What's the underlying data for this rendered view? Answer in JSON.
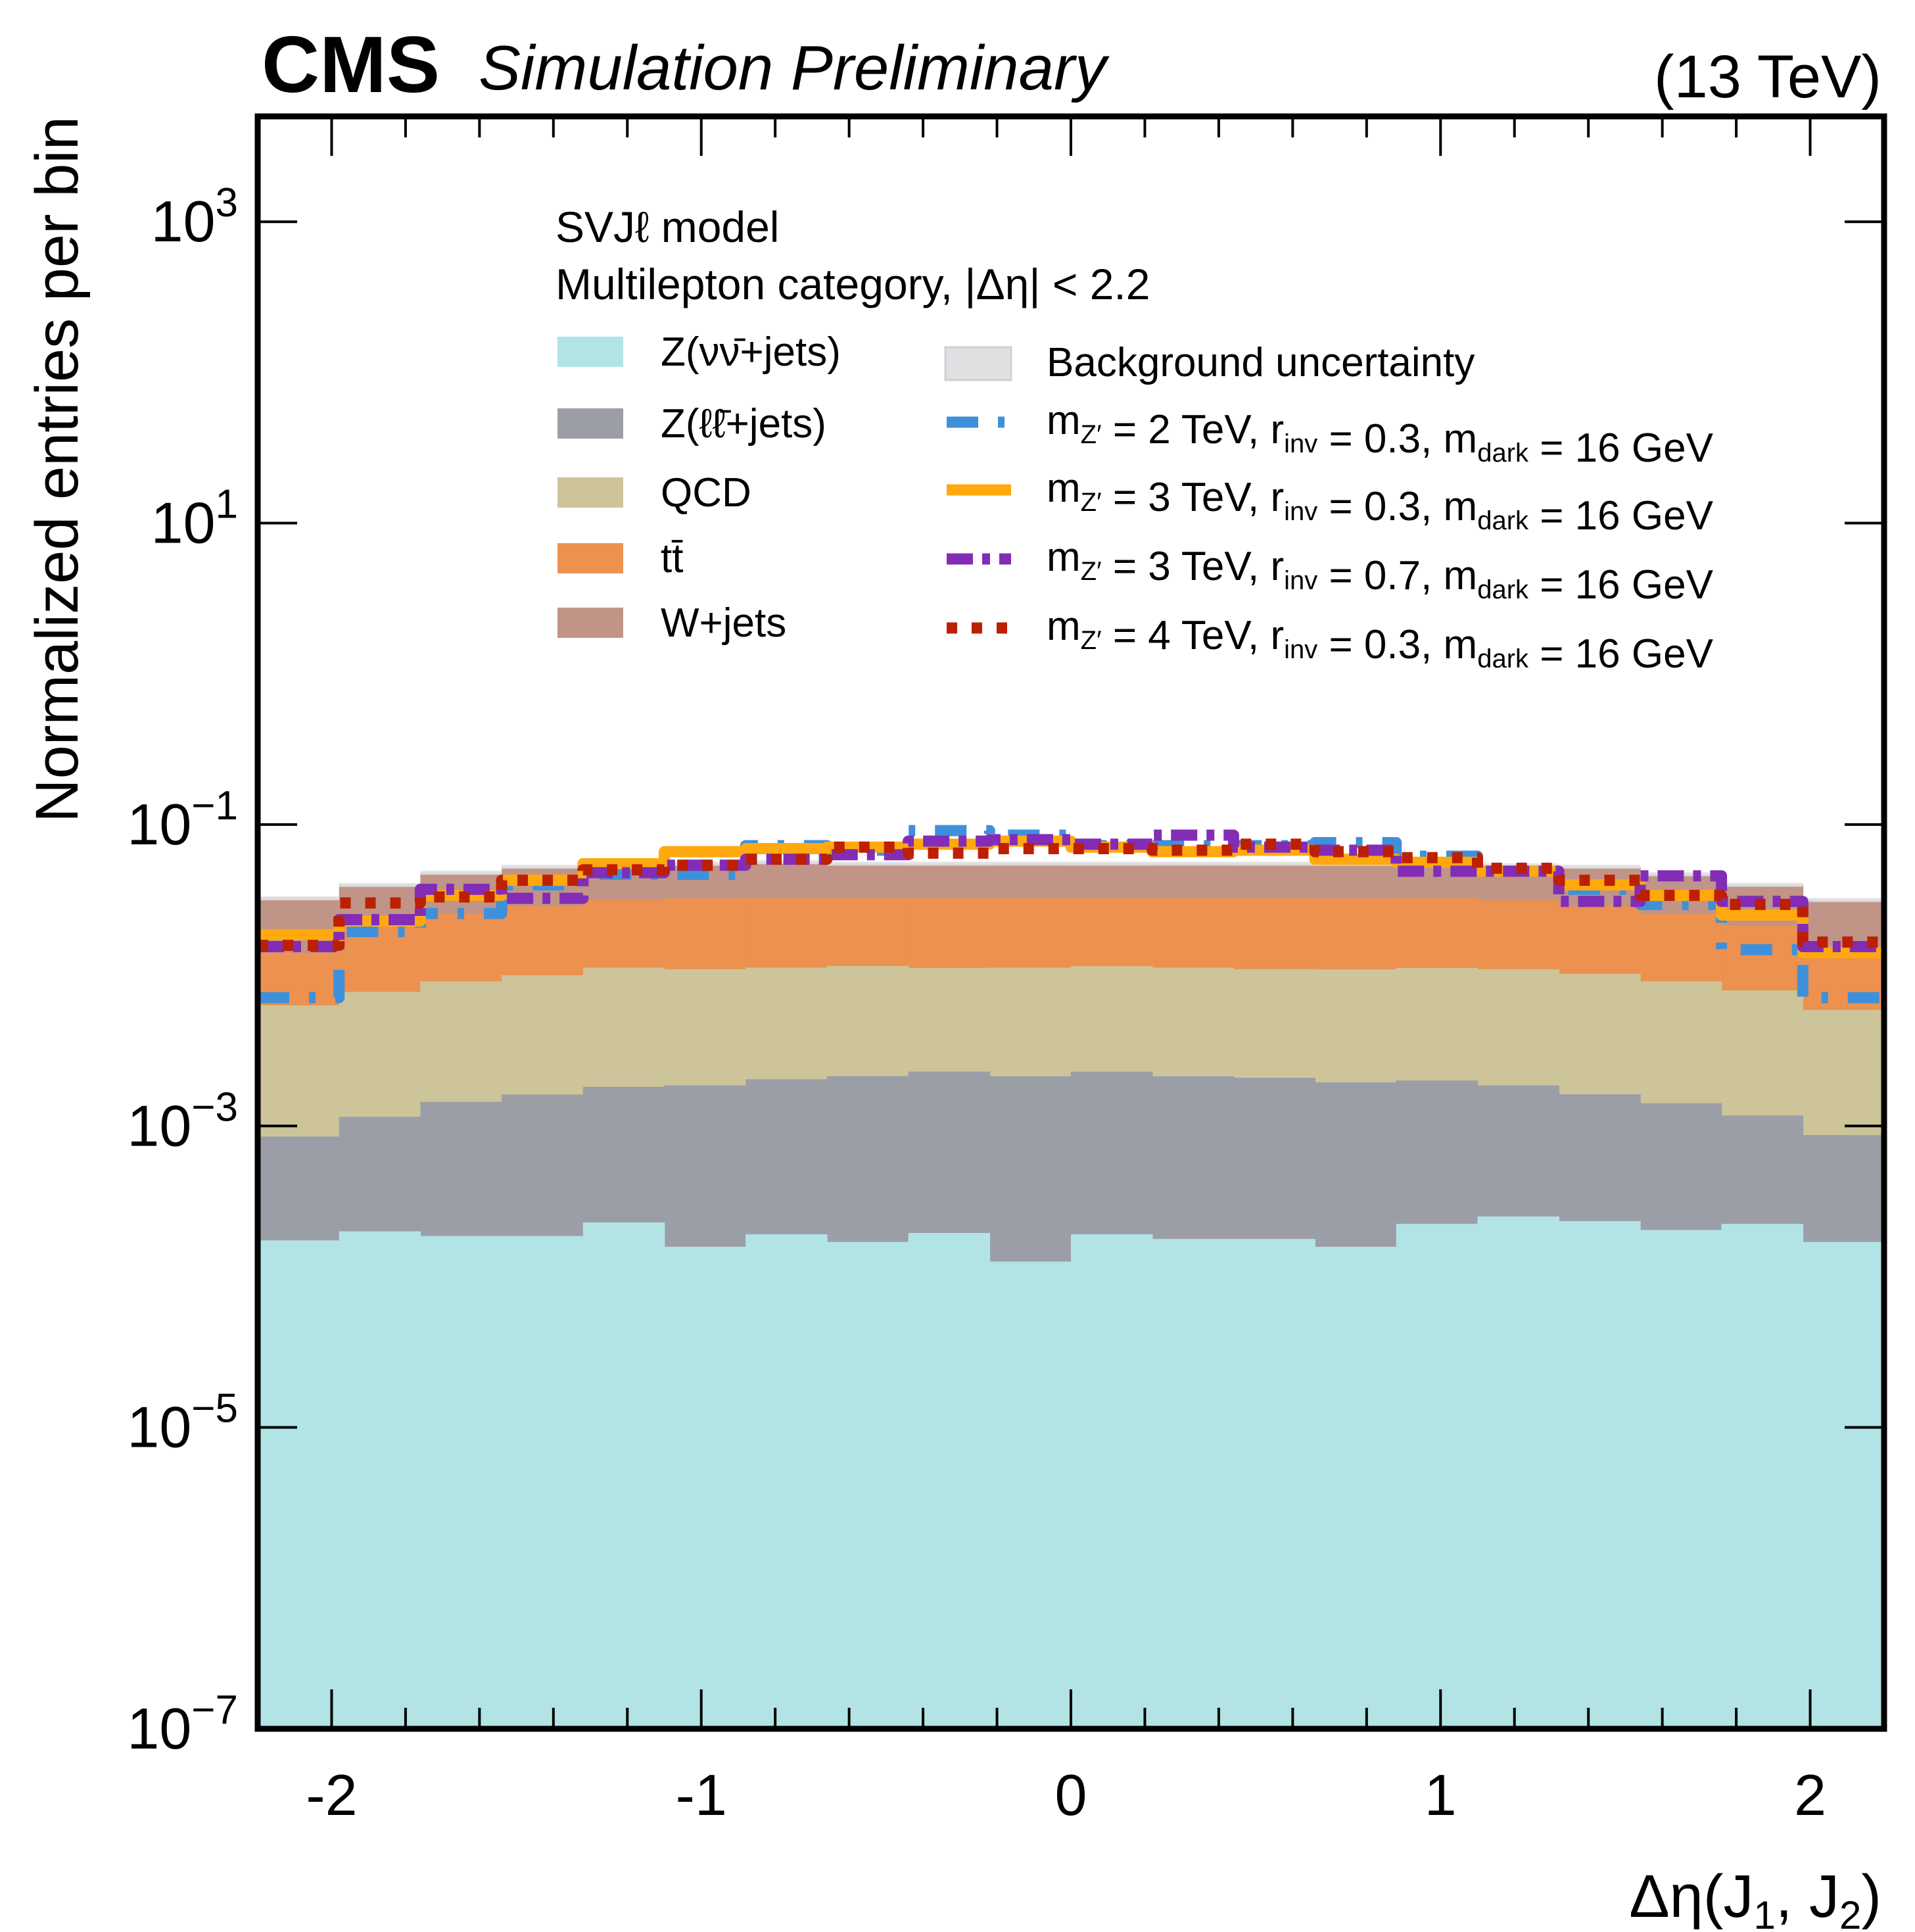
{
  "header": {
    "experiment": "CMS",
    "status": "Simulation Preliminary",
    "energy": "(13 TeV)"
  },
  "chart_data": {
    "type": "bar",
    "subtype": "stacked-histogram-with-step-lines",
    "title": "",
    "xlabel": "Δη(J₁, J₂)",
    "ylabel": "Normalized entries per bin",
    "yscale": "log",
    "xlim": [
      -2.2,
      2.2
    ],
    "ylim": [
      1e-07,
      5000
    ],
    "x_ticks": [
      {
        "value": -2,
        "label": "-2"
      },
      {
        "value": -1,
        "label": "-1"
      },
      {
        "value": 0,
        "label": "0"
      },
      {
        "value": 1,
        "label": "1"
      },
      {
        "value": 2,
        "label": "2"
      }
    ],
    "y_ticks": [
      {
        "exp": 3,
        "label_base": "10",
        "label_exp": "3"
      },
      {
        "exp": 1,
        "label_base": "10",
        "label_exp": "1"
      },
      {
        "exp": -1,
        "label_base": "10",
        "label_exp": "−1"
      },
      {
        "exp": -3,
        "label_base": "10",
        "label_exp": "−3"
      },
      {
        "exp": -5,
        "label_base": "10",
        "label_exp": "−5"
      },
      {
        "exp": -7,
        "label_base": "10",
        "label_exp": "−7"
      }
    ],
    "bin_edges": [
      -2.2,
      -1.98,
      -1.76,
      -1.54,
      -1.32,
      -1.1,
      -0.88,
      -0.66,
      -0.44,
      -0.22,
      0.0,
      0.22,
      0.44,
      0.66,
      0.88,
      1.1,
      1.32,
      1.54,
      1.76,
      1.98,
      2.2
    ],
    "legend_header": [
      "SVJℓ model",
      "Multilepton category,  |Δη| < 2.2"
    ],
    "legend_placement": "top-center",
    "stack": [
      {
        "name": "Z(νν̄+jets)",
        "color": "#b2e4e6",
        "values": [
          0.000174,
          0.0002,
          0.000186,
          0.000186,
          0.000229,
          0.000158,
          0.000191,
          0.00017,
          0.000195,
          0.000126,
          0.000191,
          0.000178,
          0.000178,
          0.000158,
          0.000224,
          0.000251,
          0.000234,
          0.000204,
          0.000224,
          0.00017
        ]
      },
      {
        "name": "Z(ℓℓ̄+jets)",
        "color": "#9c9ea7",
        "values": [
          0.000677,
          0.00095,
          0.00126,
          0.00143,
          0.00159,
          0.0017,
          0.00185,
          0.00197,
          0.0021,
          0.00201,
          0.0021,
          0.00196,
          0.00191,
          0.00179,
          0.00178,
          0.00161,
          0.00139,
          0.00121,
          0.00095,
          0.0007
        ]
      },
      {
        "name": "QCD",
        "color": "#cdc499",
        "values": [
          0.00546,
          0.00661,
          0.00767,
          0.00838,
          0.0094,
          0.0091,
          0.0092,
          0.0094,
          0.0089,
          0.0091,
          0.0092,
          0.0091,
          0.0089,
          0.009,
          0.0092,
          0.0091,
          0.0086,
          0.00771,
          0.00677,
          0.00502
        ]
      },
      {
        "name": "tt̄",
        "color": "#ec914f",
        "values": [
          0.0078,
          0.0141,
          0.0166,
          0.0188,
          0.0204,
          0.0214,
          0.0212,
          0.0209,
          0.0212,
          0.0212,
          0.0209,
          0.0212,
          0.0214,
          0.0214,
          0.0212,
          0.0206,
          0.0186,
          0.0166,
          0.0135,
          0.0073
        ]
      },
      {
        "name": "W+jets",
        "color": "#c19488",
        "values": [
          0.0183,
          0.0179,
          0.0222,
          0.0237,
          0.0259,
          0.0226,
          0.0238,
          0.0226,
          0.0226,
          0.0226,
          0.0226,
          0.0226,
          0.0226,
          0.0226,
          0.0226,
          0.0221,
          0.0237,
          0.0211,
          0.0184,
          0.0184
        ]
      }
    ],
    "uncertainty": {
      "name": "Background uncertainty",
      "color": "#e0e0e3",
      "relative": 0.03
    },
    "series": [
      {
        "name": "mZ′ = 2 TeV, rinv = 0.3, mdark = 16 GeV",
        "mz": "2",
        "rinv": "0.3",
        "mdark": "16",
        "color": "#3f90da",
        "dash": "dashed",
        "values": [
          0.0071,
          0.0195,
          0.0257,
          0.0398,
          0.0468,
          0.0468,
          0.0724,
          0.0676,
          0.0912,
          0.0851,
          0.0724,
          0.0724,
          0.0724,
          0.0759,
          0.0617,
          0.049,
          0.0372,
          0.0295,
          0.0148,
          0.0071
        ]
      },
      {
        "name": "mZ′ = 3 TeV, rinv = 0.3, mdark = 16 GeV",
        "mz": "3",
        "rinv": "0.3",
        "mdark": "16",
        "color": "#ffa90e",
        "dash": "solid",
        "values": [
          0.0186,
          0.0229,
          0.0339,
          0.0427,
          0.055,
          0.0661,
          0.0692,
          0.0708,
          0.0741,
          0.0776,
          0.0708,
          0.0661,
          0.0676,
          0.0589,
          0.0562,
          0.049,
          0.0398,
          0.0339,
          0.0251,
          0.0141
        ]
      },
      {
        "name": "mZ′ = 3 TeV, rinv = 0.7, mdark = 16 GeV",
        "mz": "3",
        "rinv": "0.7",
        "mdark": "16",
        "color": "#832db6",
        "dash": "dashdot",
        "values": [
          0.0155,
          0.0234,
          0.0372,
          0.0324,
          0.0479,
          0.0537,
          0.0589,
          0.0631,
          0.0776,
          0.0794,
          0.0741,
          0.0851,
          0.0708,
          0.0676,
          0.049,
          0.049,
          0.0309,
          0.0457,
          0.0309,
          0.0155
        ]
      },
      {
        "name": "mZ′ = 4 TeV, rinv = 0.3, mdark = 16 GeV",
        "mz": "4",
        "rinv": "0.3",
        "mdark": "16",
        "color": "#bd1f01",
        "dash": "dotted",
        "values": [
          0.0158,
          0.0302,
          0.0331,
          0.0427,
          0.0501,
          0.0537,
          0.0589,
          0.0708,
          0.0646,
          0.0692,
          0.0692,
          0.0676,
          0.0741,
          0.0661,
          0.0603,
          0.0513,
          0.0427,
          0.0339,
          0.0295,
          0.0166
        ]
      }
    ]
  },
  "legend": {
    "header_line1": "SVJℓ model",
    "header_line2": "Multilepton category,  |Δη| < 2.2",
    "bkg": [
      {
        "label": "Z(νν̄+jets)"
      },
      {
        "label": "Z(ℓℓ̄+jets)"
      },
      {
        "label": "QCD"
      },
      {
        "label": "tt̄"
      },
      {
        "label": "W+jets"
      }
    ],
    "unc_label": "Background uncertainty",
    "sig_text": {
      "m": "m",
      "z": "Z′",
      "eq": " = ",
      "tev": " TeV, ",
      "r": "r",
      "inv": "inv",
      "md": "m",
      "dark": "dark",
      "gev": " GeV"
    }
  },
  "axes": {
    "xlabel_main": "Δη(J",
    "xlabel_sub1": "1",
    "xlabel_mid": ", J",
    "xlabel_sub2": "2",
    "xlabel_end": ")",
    "ylabel": "Normalized entries per bin"
  }
}
